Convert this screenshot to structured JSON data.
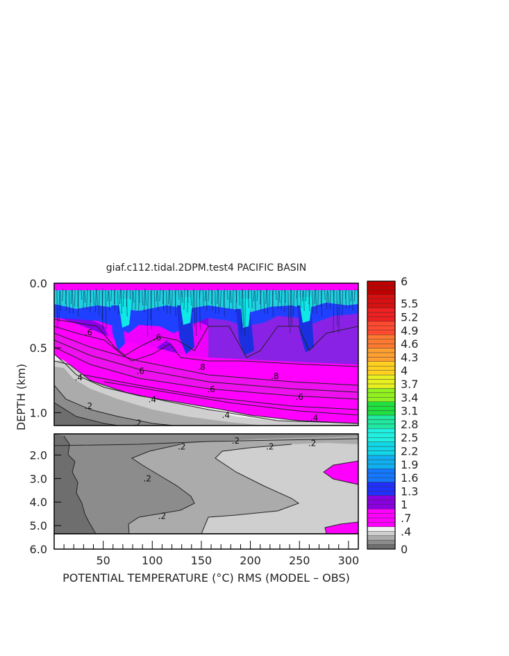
{
  "chart_data": {
    "type": "heatmap",
    "title": "giaf.c112.tidal.2DPM.test4 PACIFIC BASIN",
    "xlabel": "POTENTIAL TEMPERATURE (°C) RMS (MODEL – OBS)",
    "ylabel": "DEPTH (km)",
    "x_range": [
      0,
      310
    ],
    "x_ticks": [
      "50",
      "100",
      "150",
      "200",
      "250",
      "300"
    ],
    "x_tick_values": [
      50,
      100,
      150,
      200,
      250,
      300
    ],
    "upper_panel": {
      "y_range": [
        0.0,
        1.1
      ],
      "y_ticks": [
        "0.0",
        "0.5",
        "1.0"
      ],
      "y_tick_values": [
        0.0,
        0.5,
        1.0
      ]
    },
    "lower_panel": {
      "y_range": [
        1.1,
        6.0
      ],
      "y_ticks": [
        "2.0",
        "3.0",
        "4.0",
        "5.0",
        "6.0"
      ],
      "y_tick_values": [
        2.0,
        3.0,
        4.0,
        5.0,
        6.0
      ]
    },
    "contour_labels": [
      {
        "text": ".6",
        "x": 35,
        "y": 0.38,
        "panel": "upper"
      },
      {
        "text": ".6",
        "x": 105,
        "y": 0.42,
        "panel": "upper"
      },
      {
        "text": ".4",
        "x": 25,
        "y": 0.73,
        "panel": "upper"
      },
      {
        "text": ".2",
        "x": 35,
        "y": 0.95,
        "panel": "upper"
      },
      {
        "text": ".6",
        "x": 88,
        "y": 0.68,
        "panel": "upper"
      },
      {
        "text": ".8",
        "x": 150,
        "y": 0.65,
        "panel": "upper"
      },
      {
        "text": ".6",
        "x": 160,
        "y": 0.82,
        "panel": "upper"
      },
      {
        "text": ".4",
        "x": 100,
        "y": 0.9,
        "panel": "upper"
      },
      {
        "text": ".2",
        "x": 85,
        "y": 1.08,
        "panel": "upper"
      },
      {
        "text": ".4",
        "x": 175,
        "y": 1.02,
        "panel": "upper"
      },
      {
        "text": ".8",
        "x": 225,
        "y": 0.72,
        "panel": "upper"
      },
      {
        "text": ".6",
        "x": 250,
        "y": 0.88,
        "panel": "upper"
      },
      {
        "text": ".4",
        "x": 265,
        "y": 1.04,
        "panel": "upper"
      },
      {
        "text": ".2",
        "x": 130,
        "y": 1.65,
        "panel": "lower"
      },
      {
        "text": ".2",
        "x": 185,
        "y": 1.4,
        "panel": "lower"
      },
      {
        "text": ".2",
        "x": 220,
        "y": 1.65,
        "panel": "lower"
      },
      {
        "text": ".2",
        "x": 263,
        "y": 1.5,
        "panel": "lower"
      },
      {
        "text": ".2",
        "x": 95,
        "y": 3.0,
        "panel": "lower"
      },
      {
        "text": ".2",
        "x": 110,
        "y": 4.6,
        "panel": "lower"
      }
    ],
    "colorbar": {
      "labels": [
        "6",
        "5.5",
        "5.2",
        "4.9",
        "4.6",
        "4.3",
        "4",
        "3.7",
        "3.4",
        "3.1",
        "2.8",
        "2.5",
        "2.2",
        "1.9",
        "1.6",
        "1.3",
        "1",
        ".7",
        ".4",
        "0"
      ],
      "label_values": [
        6,
        5.5,
        5.2,
        4.9,
        4.6,
        4.3,
        4,
        3.7,
        3.4,
        3.1,
        2.8,
        2.5,
        2.2,
        1.9,
        1.6,
        1.3,
        1,
        0.7,
        0.4,
        0
      ],
      "colors": [
        {
          "from": 0.0,
          "to": 0.1,
          "color": "#6e6e6e"
        },
        {
          "from": 0.1,
          "to": 0.2,
          "color": "#8c8c8c"
        },
        {
          "from": 0.2,
          "to": 0.3,
          "color": "#ababab"
        },
        {
          "from": 0.3,
          "to": 0.4,
          "color": "#cfcfcf"
        },
        {
          "from": 0.4,
          "to": 0.5,
          "color": "#f2f2f2"
        },
        {
          "from": 0.5,
          "to": 0.9,
          "color": "#ff00ff"
        },
        {
          "from": 0.9,
          "to": 1.2,
          "color": "#8a00e0"
        },
        {
          "from": 1.2,
          "to": 1.5,
          "color": "#2030ff"
        },
        {
          "from": 1.5,
          "to": 1.8,
          "color": "#1478ff"
        },
        {
          "from": 1.8,
          "to": 2.1,
          "color": "#10b0f0"
        },
        {
          "from": 2.1,
          "to": 2.4,
          "color": "#10d8e8"
        },
        {
          "from": 2.4,
          "to": 2.7,
          "color": "#20f0e0"
        },
        {
          "from": 2.7,
          "to": 3.0,
          "color": "#20e8a0"
        },
        {
          "from": 3.0,
          "to": 3.3,
          "color": "#20e040"
        },
        {
          "from": 3.3,
          "to": 3.6,
          "color": "#90f020"
        },
        {
          "from": 3.6,
          "to": 3.9,
          "color": "#e8f020"
        },
        {
          "from": 3.9,
          "to": 4.2,
          "color": "#ffd020"
        },
        {
          "from": 4.2,
          "to": 4.5,
          "color": "#ffa030"
        },
        {
          "from": 4.5,
          "to": 4.8,
          "color": "#ff7a30"
        },
        {
          "from": 4.8,
          "to": 5.1,
          "color": "#ff4a30"
        },
        {
          "from": 5.1,
          "to": 5.4,
          "color": "#f02020"
        },
        {
          "from": 5.4,
          "to": 5.7,
          "color": "#d81010"
        },
        {
          "from": 5.7,
          "to": 6.0,
          "color": "#c00000"
        }
      ]
    }
  }
}
